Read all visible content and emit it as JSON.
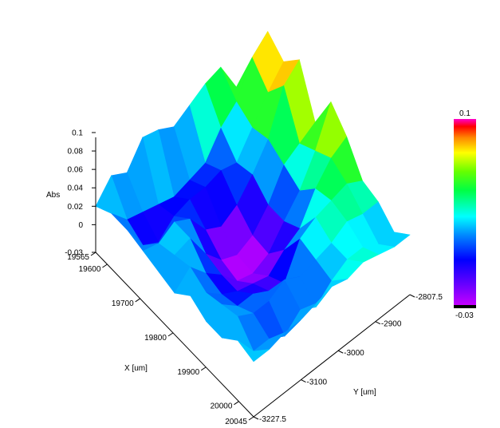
{
  "chart_data": {
    "type": "surface",
    "z_label": "Abs",
    "x_label": "X [um]",
    "y_label": "Y [um]",
    "z_ticks": [
      "0.1",
      "0.08",
      "0.06",
      "0.04",
      "0.02",
      "0",
      "-0.03"
    ],
    "z_range": [
      -0.03,
      0.1
    ],
    "x_ticks": [
      "19565",
      "19600",
      "19700",
      "19800",
      "19900",
      "20000",
      "20045"
    ],
    "x_range": [
      19565,
      20045
    ],
    "y_ticks": [
      "-2807.5",
      "-2900",
      "-3000",
      "-3100",
      "-3227.5"
    ],
    "y_range": [
      -3227.5,
      -2807.5
    ],
    "colorbar": {
      "max_label": "0.1",
      "min_label": "-0.03"
    },
    "surface_z": [
      [
        0.02,
        0.04,
        0.03,
        0.055,
        0.05,
        0.04,
        0.05,
        0.06,
        0.065,
        0.03,
        0.01
      ],
      [
        0.03,
        0.01,
        0.005,
        0.0,
        -0.005,
        0.0,
        0.005,
        0.03,
        0.045,
        0.08,
        0.095
      ],
      [
        0.03,
        0.0,
        -0.01,
        0.005,
        0.01,
        0.01,
        0.015,
        0.01,
        0.035,
        0.06,
        0.08
      ],
      [
        0.025,
        0.02,
        0.03,
        0.02,
        -0.005,
        -0.015,
        -0.005,
        0.015,
        0.04,
        0.085,
        0.1
      ],
      [
        0.02,
        0.025,
        0.03,
        0.0,
        -0.02,
        -0.028,
        -0.02,
        0.0,
        0.03,
        0.04,
        0.05
      ],
      [
        0.015,
        0.03,
        0.01,
        -0.005,
        -0.025,
        -0.03,
        -0.022,
        0.0,
        0.02,
        0.05,
        0.09
      ],
      [
        0.03,
        0.02,
        0.005,
        -0.005,
        -0.01,
        -0.015,
        0.0,
        0.01,
        0.04,
        0.06,
        0.07
      ],
      [
        0.02,
        0.025,
        0.01,
        0.01,
        0.0,
        -0.005,
        0.03,
        0.04,
        0.045,
        0.05,
        0.04
      ],
      [
        0.02,
        0.03,
        0.02,
        0.02,
        0.03,
        0.02,
        0.025,
        0.03,
        0.04,
        0.035,
        0.035
      ],
      [
        0.035,
        0.01,
        0.01,
        0.0,
        0.015,
        0.005,
        0.02,
        0.03,
        0.03,
        0.02,
        0.02
      ],
      [
        0.03,
        0.03,
        0.035,
        0.035,
        0.04,
        0.045,
        0.04,
        0.045,
        0.04,
        0.035,
        0.035
      ]
    ]
  }
}
